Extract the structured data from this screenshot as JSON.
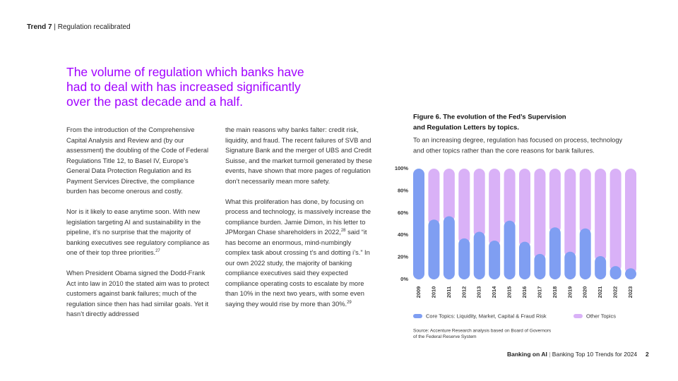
{
  "header": {
    "trend": "Trend 7",
    "separator": "|",
    "title": "Regulation recalibrated"
  },
  "headline": [
    "The volume of regulation which banks have",
    "had to deal with has increased significantly",
    "over the past decade and a half."
  ],
  "columns": [
    [
      [
        {
          "text": "From the introduction of the Comprehensive Capital Analysis and Review and (by our assessment) the doubling of the Code of Federal Regulations Title 12, to Basel IV, Europe’s General Data Protection Regulation and its Payment Services Directive, the compliance burden has become onerous and costly."
        }
      ],
      [
        {
          "text": "Nor is it likely to ease anytime soon. With new legislation targeting AI and sustainability in the pipeline, it’s no surprise that the majority of banking executives see regulatory compliance as one of their top three priorities."
        },
        {
          "sup": "27"
        }
      ],
      [
        {
          "text": "When President Obama signed the Dodd-Frank Act into law in 2010 the stated aim was to protect customers against bank failures; much of the regulation since then has had similar goals. Yet it hasn’t directly addressed"
        }
      ]
    ],
    [
      [
        {
          "text": "the main reasons why banks falter: credit risk, liquidity, and fraud. The recent failures of SVB and Signature Bank and the merger of UBS and Credit Suisse, and the market turmoil generated by these events, have shown that more pages of regulation don’t necessarily mean more safety."
        }
      ],
      [
        {
          "text": "What this proliferation has done, by focusing on process and technology, is massively increase the compliance burden. Jamie Dimon, in his letter to JPMorgan Chase shareholders in 2022,"
        },
        {
          "sup": "28"
        },
        {
          "text": " said “it has become an enormous, mind-numbingly complex task about crossing t’s and dotting i’s.” In our own 2022 study, the majority of banking compliance executives said they expected compliance operating costs to escalate by more than 10% in the next two years, with some even saying they would rise by more than 30%."
        },
        {
          "sup": "29"
        }
      ]
    ]
  ],
  "footer": {
    "brand": "Banking on AI",
    "separator": "|",
    "report": "Banking Top 10 Trends for 2024",
    "page": "2"
  },
  "chart_data": {
    "type": "stacked_bar",
    "title": [
      "Figure 6. The evolution of the Fed’s Supervision",
      "and Regulation Letters by topics."
    ],
    "subtitle": [
      "To an increasing degree, regulation has focused on process, technology",
      "and other topics rather than the core reasons for bank failures."
    ],
    "categories": [
      "2009",
      "2010",
      "2011",
      "2012",
      "2013",
      "2014",
      "2015",
      "2016",
      "2017",
      "2018",
      "2019",
      "2020",
      "2021",
      "2022",
      "2023"
    ],
    "series": [
      {
        "name": "Core Topics: Liquidity, Market, Capital & Fraud Risk",
        "color": "#7f9ef2",
        "values": [
          100,
          54,
          57,
          37,
          43,
          35,
          53,
          34,
          23,
          47,
          25,
          46,
          21,
          12,
          10
        ]
      },
      {
        "name": "Other Topics",
        "color": "#d9b1f7",
        "values": [
          0,
          46,
          43,
          63,
          57,
          65,
          47,
          66,
          77,
          53,
          75,
          54,
          79,
          88,
          90
        ]
      }
    ],
    "ylim": [
      0,
      100
    ],
    "yticks": [
      {
        "value": 0,
        "label": "0%"
      },
      {
        "value": 20,
        "label": "20%"
      },
      {
        "value": 40,
        "label": "40%"
      },
      {
        "value": 60,
        "label": "60%"
      },
      {
        "value": 80,
        "label": "80%"
      },
      {
        "value": 100,
        "label": "100%"
      }
    ],
    "source": [
      "Source: Accenture Research analysis based on Board of Governors",
      "of the Federal Reserve System"
    ]
  }
}
